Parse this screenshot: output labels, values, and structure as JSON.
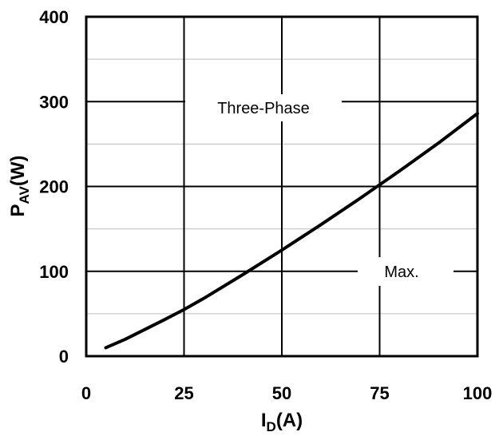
{
  "chart_data": {
    "type": "line",
    "title": "",
    "xlabel": "I",
    "xlabel_sub": "D",
    "xlabel_unit": "(A)",
    "ylabel": "P",
    "ylabel_sub": "AV",
    "ylabel_unit": "(W)",
    "xlim": [
      0,
      100
    ],
    "ylim": [
      0,
      400
    ],
    "x_ticks": [
      "0",
      "25",
      "50",
      "75",
      "100"
    ],
    "y_ticks": [
      "0",
      "100",
      "200",
      "300",
      "400"
    ],
    "x_tick_values": [
      0,
      25,
      50,
      75,
      100
    ],
    "y_tick_values": [
      0,
      100,
      200,
      300,
      400
    ],
    "grid": true,
    "series": [
      {
        "name": "Max.",
        "x": [
          5,
          10,
          20,
          25,
          30,
          40,
          50,
          60,
          70,
          75,
          80,
          90,
          100
        ],
        "y": [
          10,
          20,
          43,
          55,
          68,
          96,
          125,
          155,
          186,
          202,
          218,
          251,
          286
        ]
      }
    ],
    "annotations": [
      "Three-Phase",
      "Max."
    ]
  }
}
